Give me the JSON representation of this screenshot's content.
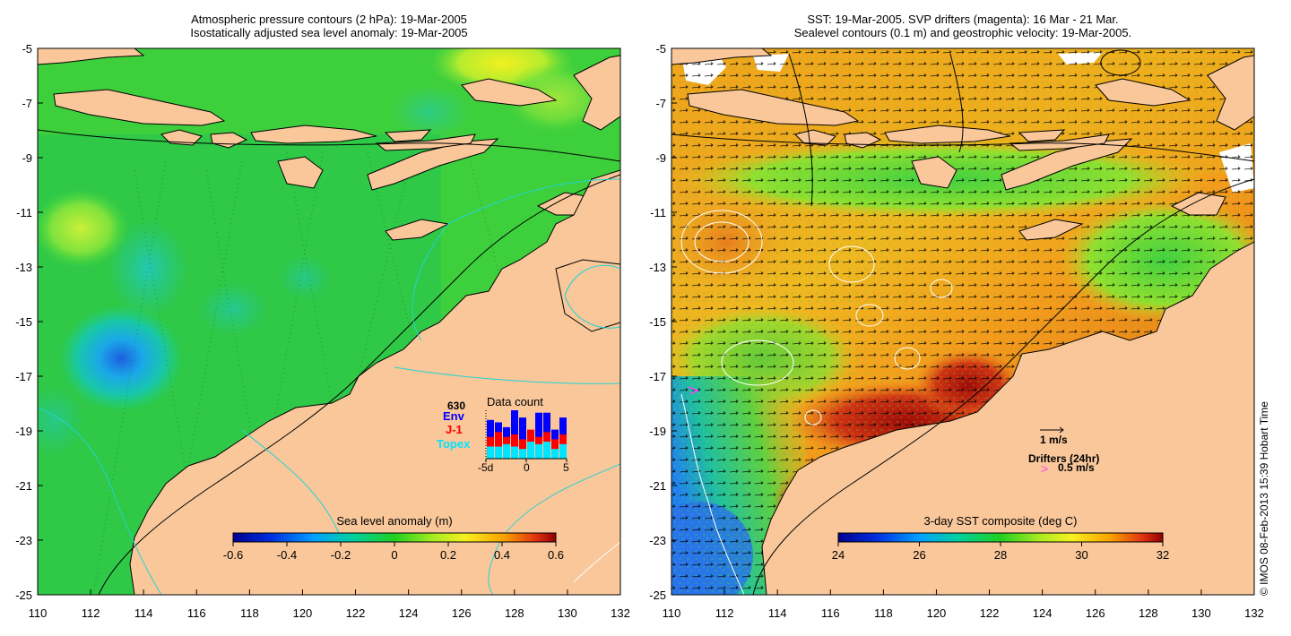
{
  "left_panel": {
    "title_line1": "Atmospheric pressure contours (2 hPa): 19-Mar-2005",
    "title_line2": "Isostatically adjusted sea level anomaly: 19-Mar-2005",
    "colorbar": {
      "label": "Sea level anomaly (m)",
      "ticks": [
        "-0.6",
        "-0.4",
        "-0.2",
        "0",
        "0.2",
        "0.4",
        "0.6"
      ]
    },
    "data_count": {
      "title": "Data count",
      "total": "630",
      "legend": [
        {
          "label": "Env",
          "color": "#0000ff"
        },
        {
          "label": "J-1",
          "color": "#ff0000"
        },
        {
          "label": "Topex",
          "color": "#00e5ff"
        }
      ],
      "x_ticks": [
        "-5d",
        "0",
        "5"
      ],
      "bars": [
        {
          "topex": 0.25,
          "j1": 0.45,
          "env": 0.8
        },
        {
          "topex": 0.25,
          "j1": 0.55,
          "env": 0.75
        },
        {
          "topex": 0.3,
          "j1": 0.45,
          "env": 0.65
        },
        {
          "topex": 0.25,
          "j1": 0.5,
          "env": 1.0
        },
        {
          "topex": 0.2,
          "j1": 0.4,
          "env": 0.85
        },
        {
          "topex": 0.35,
          "j1": 0.6,
          "env": 0.55
        },
        {
          "topex": 0.3,
          "j1": 0.45,
          "env": 0.95
        },
        {
          "topex": 0.35,
          "j1": 0.55,
          "env": 0.95
        },
        {
          "topex": 0.2,
          "j1": 0.4,
          "env": 0.6
        },
        {
          "topex": 0.3,
          "j1": 0.5,
          "env": 0.85
        }
      ]
    }
  },
  "right_panel": {
    "title_line1": "SST: 19-Mar-2005. SVP drifters (magenta): 16 Mar - 21 Mar.",
    "title_line2": "Sealevel contours (0.1 m) and geostrophic velocity: 19-Mar-2005.",
    "colorbar": {
      "label": "3-day SST composite (deg C)",
      "ticks": [
        "24",
        "26",
        "28",
        "30",
        "32"
      ]
    },
    "velocity_legend": "1 m/s",
    "drifters_legend_title": "Drifters (24hr)",
    "drifters_legend_value": "0.5 m/s",
    "drifters_symbol": ">"
  },
  "axes": {
    "y_ticks": [
      "-5",
      "-7",
      "-9",
      "-11",
      "-13",
      "-15",
      "-17",
      "-19",
      "-21",
      "-23",
      "-25"
    ],
    "x_ticks": [
      "110",
      "112",
      "114",
      "116",
      "118",
      "120",
      "122",
      "124",
      "126",
      "128",
      "130",
      "132"
    ]
  },
  "colors": {
    "land": "#f9c79a",
    "ocean_green": "#33cc33",
    "sst_orange": "#f08a1f",
    "sst_red": "#b3120a"
  },
  "credit": "© IMOS 08-Feb-2013 15:39 Hobart Time"
}
